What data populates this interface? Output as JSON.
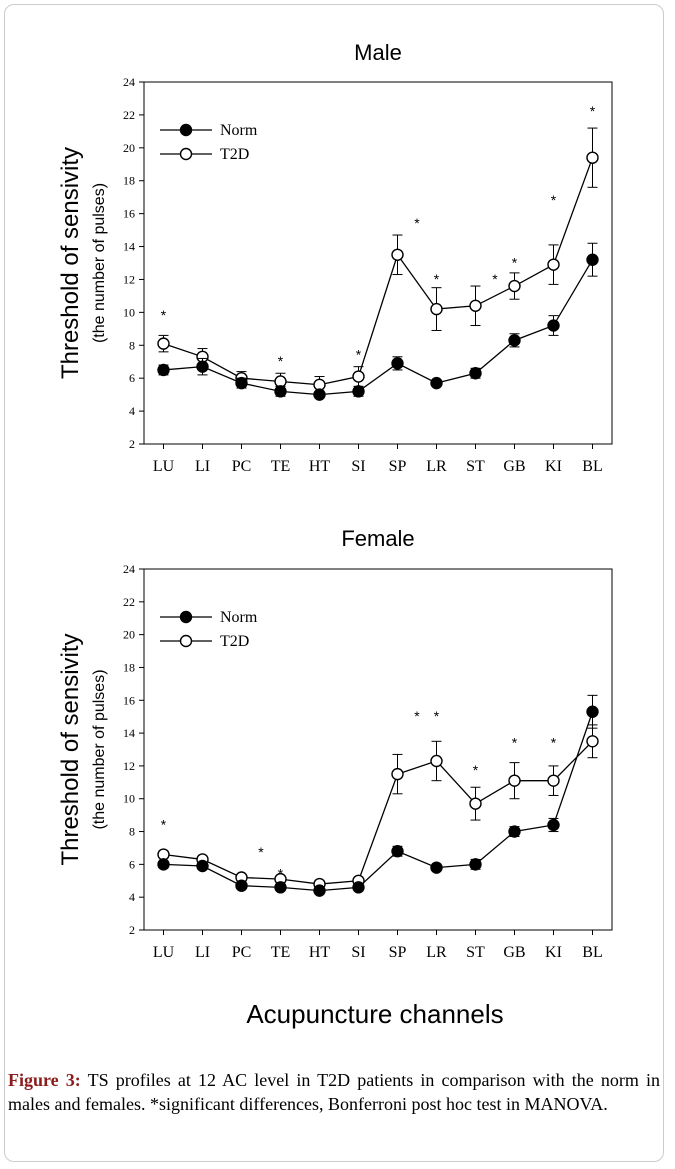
{
  "figure": {
    "xlabel": "Acupuncture channels",
    "caption_label": "Figure 3:",
    "caption_text": " TS profiles at 12 AC level in T2D patients in comparison with the norm in males and females. *significant differences, Bonferroni post hoc test in MANOVA."
  },
  "chart_data": [
    {
      "type": "line",
      "title": "Male",
      "ylabel": "Threshold of sensivity",
      "ylabel_sub": "(the number of pulses)",
      "xlabel": "",
      "ylim": [
        2,
        24
      ],
      "yticks": [
        2,
        4,
        6,
        8,
        10,
        12,
        14,
        16,
        18,
        20,
        22,
        24
      ],
      "grid": false,
      "legend_position": "top-left",
      "categories": [
        "LU",
        "LI",
        "PC",
        "TE",
        "HT",
        "SI",
        "SP",
        "LR",
        "ST",
        "GB",
        "KI",
        "BL"
      ],
      "series": [
        {
          "name": "Norm",
          "marker": "filled-circle",
          "values": [
            6.5,
            6.7,
            5.7,
            5.2,
            5.0,
            5.2,
            6.9,
            5.7,
            6.3,
            8.3,
            9.2,
            13.2
          ],
          "errors": [
            0.3,
            0.5,
            0.3,
            0.3,
            0.2,
            0.3,
            0.4,
            0.2,
            0.3,
            0.4,
            0.6,
            1.0
          ]
        },
        {
          "name": "T2D",
          "marker": "open-circle",
          "values": [
            8.1,
            7.3,
            6.0,
            5.8,
            5.6,
            6.1,
            13.5,
            10.2,
            10.4,
            11.6,
            12.9,
            19.4
          ],
          "errors": [
            0.5,
            0.5,
            0.4,
            0.5,
            0.5,
            0.6,
            1.2,
            1.3,
            1.2,
            0.8,
            1.2,
            1.8
          ]
        }
      ],
      "significance": [
        {
          "category": "LU",
          "y": 9.9,
          "dx": 0
        },
        {
          "category": "TE",
          "y": 7.1,
          "dx": 0
        },
        {
          "category": "SI",
          "y": 7.5,
          "dx": 0
        },
        {
          "category": "SP",
          "y": 15.5,
          "dx": 0.5
        },
        {
          "category": "LR",
          "y": 12.1,
          "dx": 0
        },
        {
          "category": "ST",
          "y": 12.1,
          "dx": 0.5
        },
        {
          "category": "GB",
          "y": 13.1,
          "dx": 0
        },
        {
          "category": "KI",
          "y": 16.9,
          "dx": 0
        },
        {
          "category": "BL",
          "y": 22.3,
          "dx": 0
        }
      ]
    },
    {
      "type": "line",
      "title": "Female",
      "ylabel": "Threshold of sensivity",
      "ylabel_sub": "(the number of pulses)",
      "xlabel": "",
      "ylim": [
        2,
        24
      ],
      "yticks": [
        2,
        4,
        6,
        8,
        10,
        12,
        14,
        16,
        18,
        20,
        22,
        24
      ],
      "grid": false,
      "legend_position": "top-left",
      "categories": [
        "LU",
        "LI",
        "PC",
        "TE",
        "HT",
        "SI",
        "SP",
        "LR",
        "ST",
        "GB",
        "KI",
        "BL"
      ],
      "series": [
        {
          "name": "Norm",
          "marker": "filled-circle",
          "values": [
            6.0,
            5.9,
            4.7,
            4.6,
            4.4,
            4.6,
            6.8,
            5.8,
            6.0,
            8.0,
            8.4,
            15.3
          ],
          "errors": [
            0.2,
            0.2,
            0.2,
            0.2,
            0.2,
            0.2,
            0.3,
            0.2,
            0.3,
            0.3,
            0.4,
            1.0
          ]
        },
        {
          "name": "T2D",
          "marker": "open-circle",
          "values": [
            6.6,
            6.3,
            5.2,
            5.1,
            4.8,
            5.0,
            11.5,
            12.3,
            9.7,
            11.1,
            11.1,
            13.5
          ],
          "errors": [
            0.2,
            0.2,
            0.2,
            0.2,
            0.2,
            0.2,
            1.2,
            1.2,
            1.0,
            1.1,
            0.9,
            1.0
          ]
        }
      ],
      "significance": [
        {
          "category": "LU",
          "y": 8.5,
          "dx": 0
        },
        {
          "category": "PC",
          "y": 6.8,
          "dx": 0.5
        },
        {
          "category": "TE",
          "y": 5.5,
          "dx": 0
        },
        {
          "category": "SP",
          "y": 15.1,
          "dx": 0.5
        },
        {
          "category": "LR",
          "y": 15.1,
          "dx": 0
        },
        {
          "category": "ST",
          "y": 11.8,
          "dx": 0
        },
        {
          "category": "GB",
          "y": 13.5,
          "dx": 0
        },
        {
          "category": "KI",
          "y": 13.5,
          "dx": 0
        }
      ]
    }
  ]
}
